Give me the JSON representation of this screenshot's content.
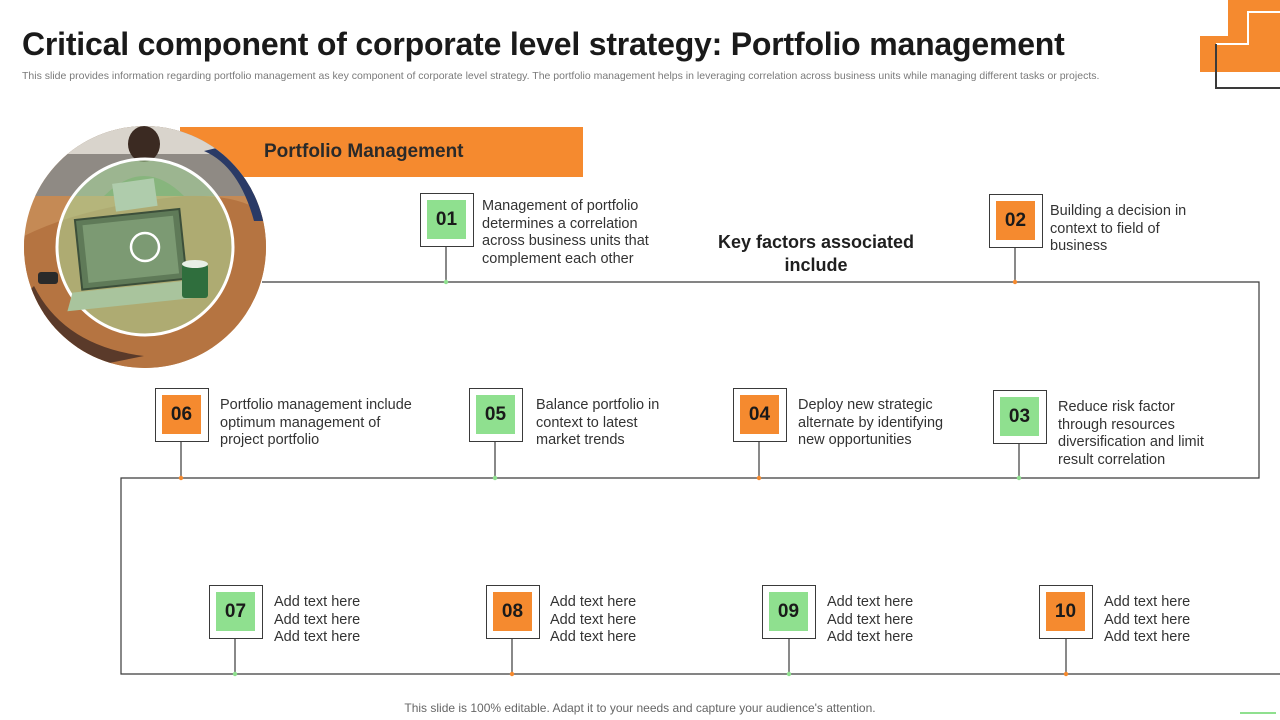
{
  "slide": {
    "title": "Critical component of corporate level strategy: Portfolio management",
    "subtitle": "This slide provides information regarding portfolio management as key component of corporate level strategy. The portfolio management helps in leveraging correlation across business units while managing different tasks or projects.",
    "banner_label": "Portfolio Management",
    "center_heading": "Key factors associated include",
    "footer": "This slide is 100% editable. Adapt it to your needs and capture your audience's attention."
  },
  "colors": {
    "accent_orange": "#f58a2f",
    "accent_green": "#8fe08f",
    "outline": "#3a3a3a"
  },
  "steps": [
    {
      "number": "01",
      "color": "green",
      "text": "Management of portfolio determines a correlation across business units that complement each other"
    },
    {
      "number": "02",
      "color": "orange",
      "text": "Building a decision in context to field of business"
    },
    {
      "number": "03",
      "color": "green",
      "text": "Reduce risk factor through resources diversification and limit result correlation"
    },
    {
      "number": "04",
      "color": "orange",
      "text": "Deploy new strategic alternate by identifying new opportunities"
    },
    {
      "number": "05",
      "color": "green",
      "text": "Balance portfolio in context to latest market trends"
    },
    {
      "number": "06",
      "color": "orange",
      "text": "Portfolio management include optimum management of project portfolio"
    },
    {
      "number": "07",
      "color": "green",
      "text": "Add text here Add text here Add text here"
    },
    {
      "number": "08",
      "color": "orange",
      "text": "Add text here Add text here Add text here"
    },
    {
      "number": "09",
      "color": "green",
      "text": "Add text here Add text here Add text here"
    },
    {
      "number": "10",
      "color": "orange",
      "text": "Add text here Add text here Add text here"
    }
  ],
  "image": {
    "icon": "meeting-laptop-photo"
  }
}
